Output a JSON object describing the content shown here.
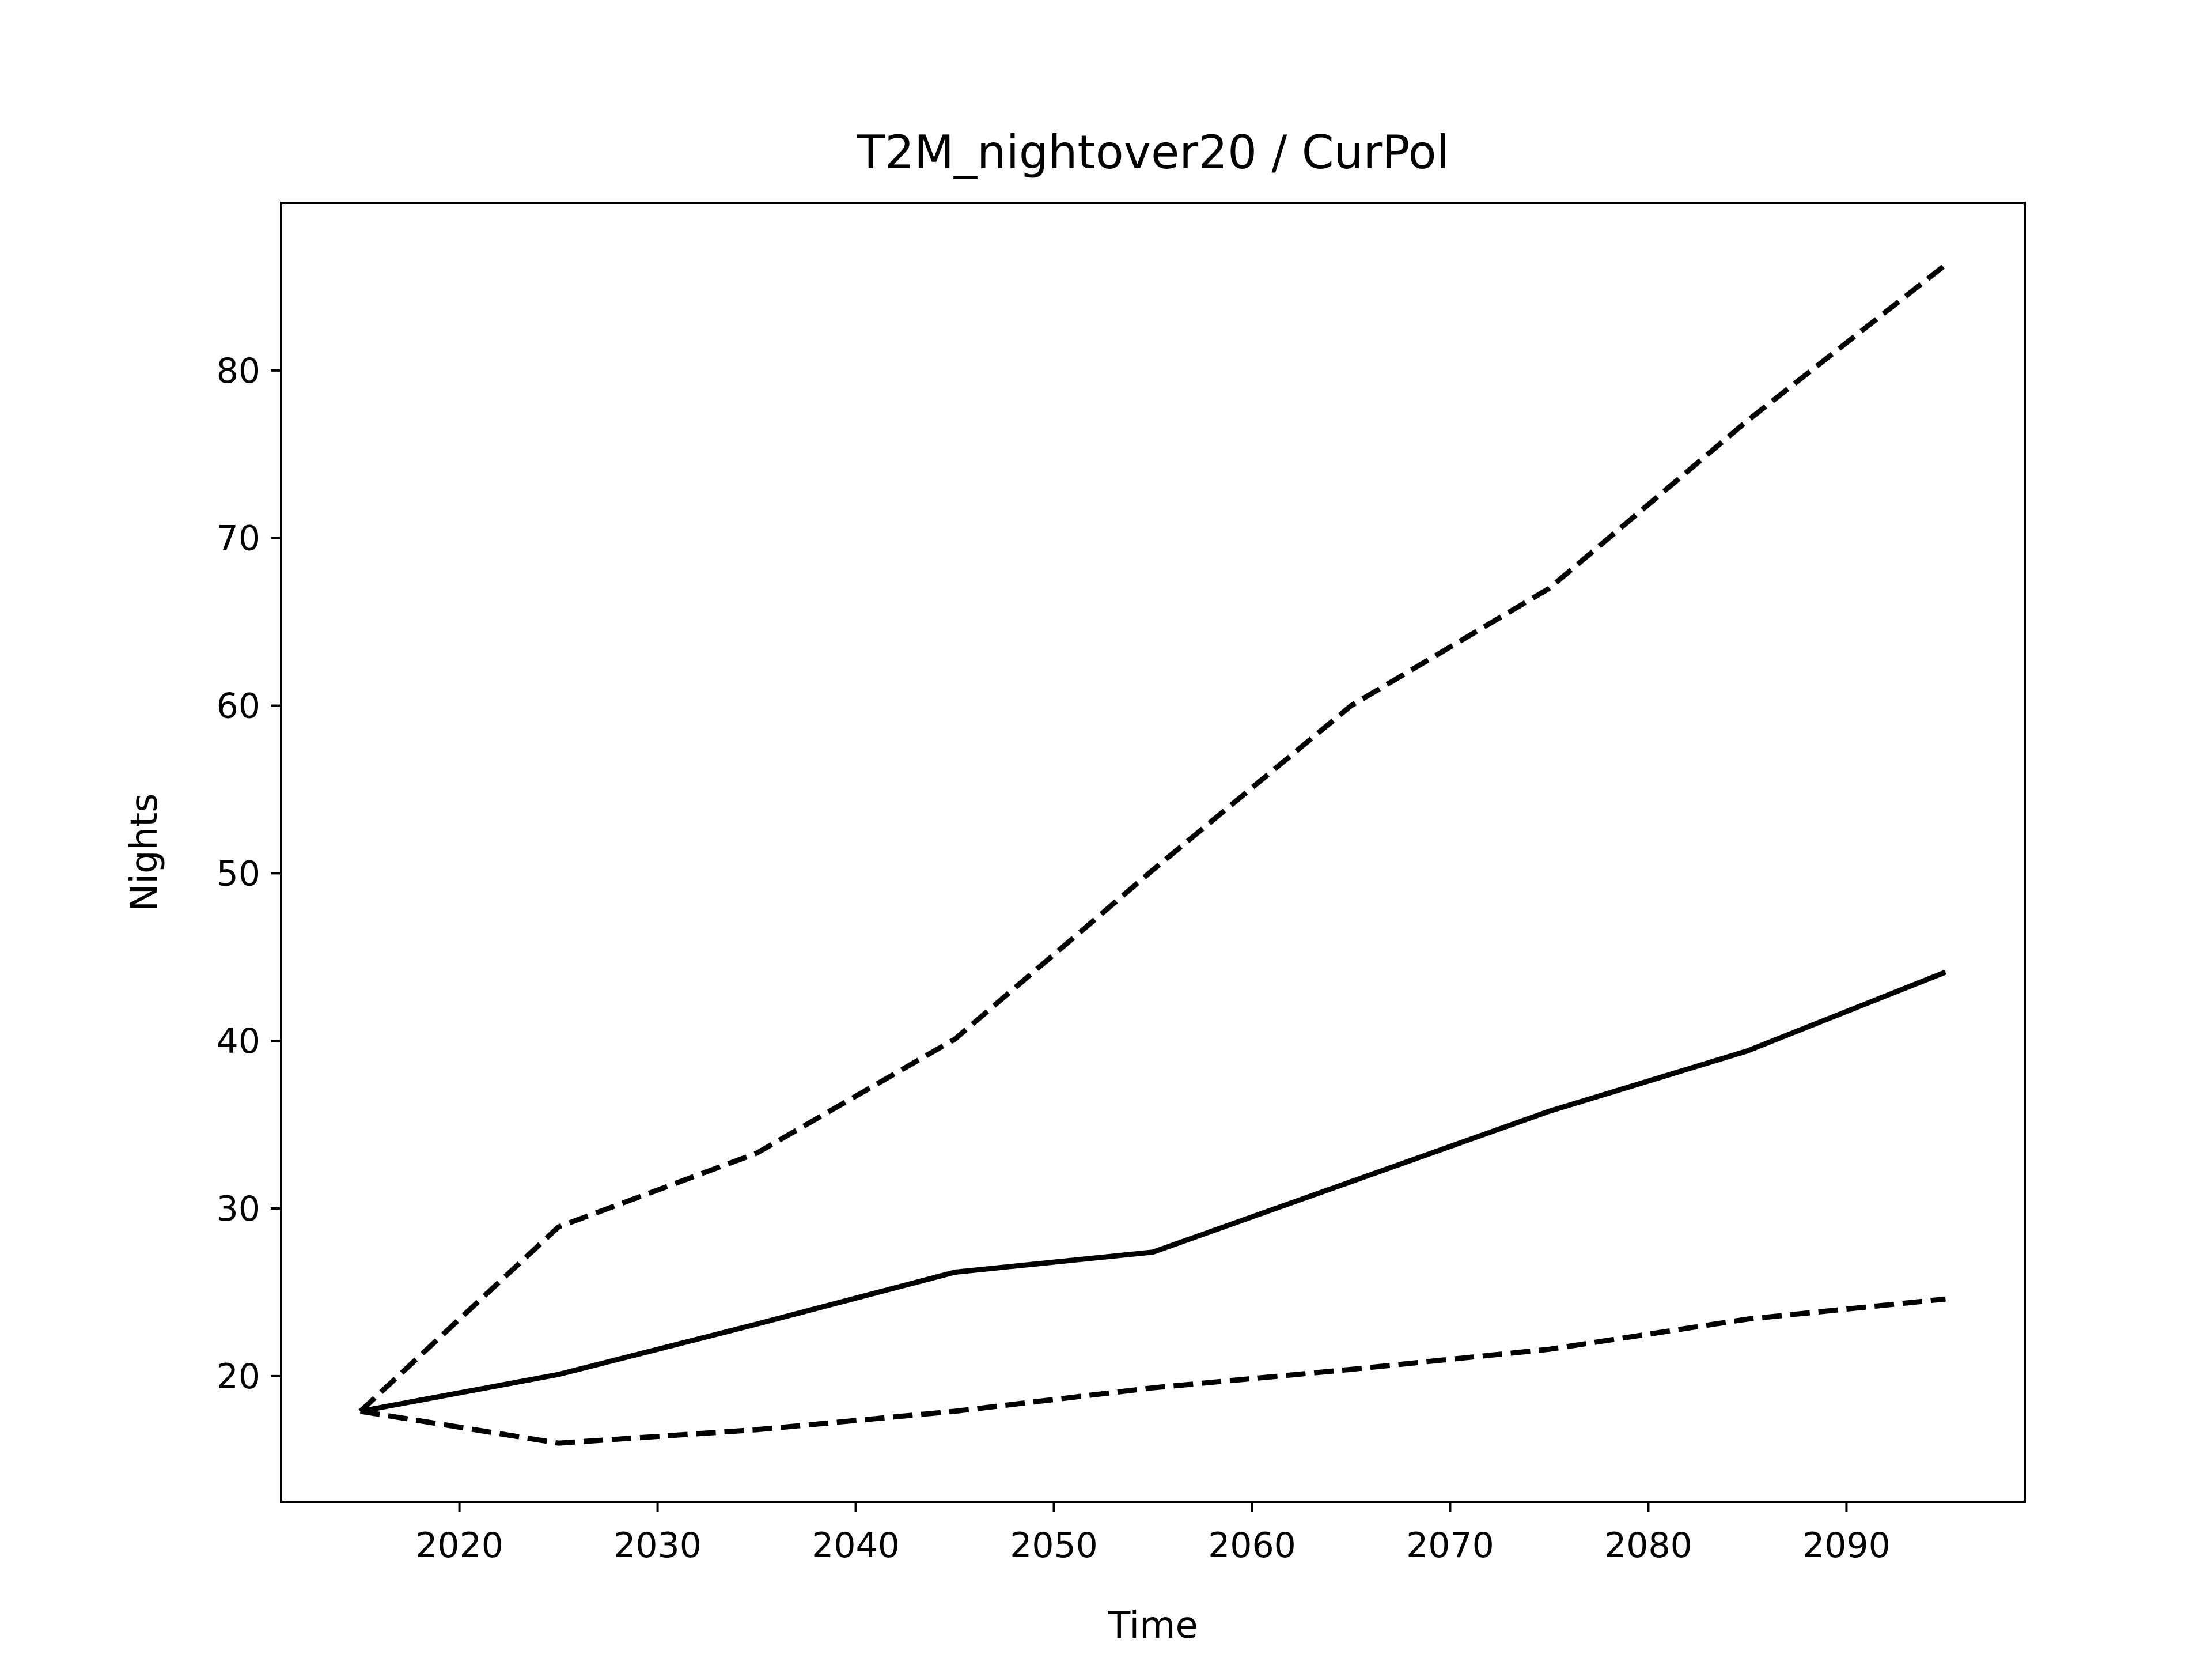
{
  "chart_data": {
    "type": "line",
    "title": "T2M_nightover20 / CurPol",
    "xlabel": "Time",
    "ylabel": "Nights",
    "xlim": [
      2011,
      2099
    ],
    "ylim": [
      12.5,
      90
    ],
    "xticks": [
      2020,
      2030,
      2040,
      2050,
      2060,
      2070,
      2080,
      2090
    ],
    "yticks": [
      20,
      30,
      40,
      50,
      60,
      70,
      80
    ],
    "grid": false,
    "legend": "none",
    "x": [
      2015,
      2025,
      2035,
      2045,
      2055,
      2065,
      2075,
      2085,
      2095
    ],
    "series": [
      {
        "style": "dashed",
        "color": "#000000",
        "values": [
          17.9,
          28.9,
          33.3,
          40.1,
          50.2,
          60.0,
          67.0,
          77.0,
          86.3
        ]
      },
      {
        "style": "solid",
        "color": "#000000",
        "values": [
          17.9,
          20.1,
          23.1,
          26.2,
          27.4,
          31.6,
          35.8,
          39.4,
          44.1
        ]
      },
      {
        "style": "dashed",
        "color": "#000000",
        "values": [
          17.9,
          16.0,
          16.8,
          17.9,
          19.3,
          20.4,
          21.6,
          23.4,
          24.6
        ]
      }
    ]
  }
}
